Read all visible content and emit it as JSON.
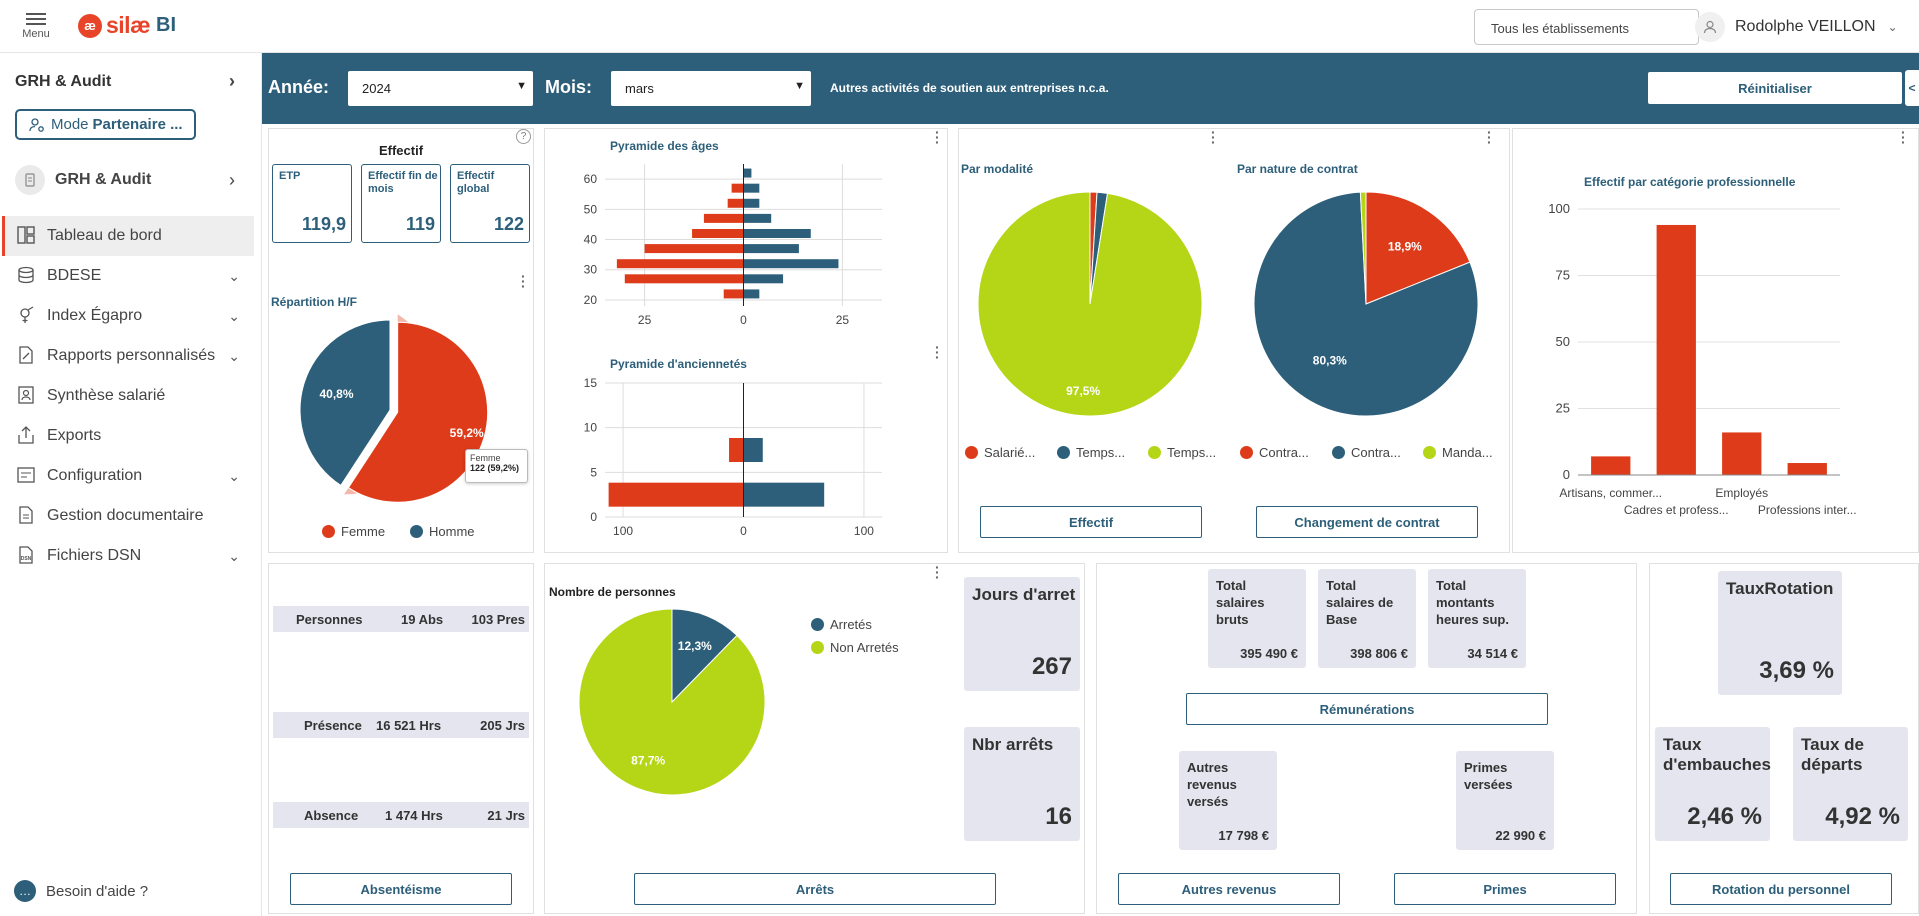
{
  "header": {
    "menu_label": "Menu",
    "logo_mark": "æ",
    "logo_text": "silæ",
    "logo_bi": "BI",
    "establishment_placeholder": "Tous les établissements",
    "user_name": "Rodolphe VEILLON"
  },
  "sidebar": {
    "section_title": "GRH & Audit",
    "mode_label": "Mode",
    "mode_value": "Partenaire ...",
    "workspace_label": "GRH & Audit",
    "items": [
      {
        "label": "Tableau de bord",
        "icon": "dashboard-icon"
      },
      {
        "label": "BDESE",
        "icon": "database-icon"
      },
      {
        "label": "Index Égapro",
        "icon": "gender-icon"
      },
      {
        "label": "Rapports personnalisés",
        "icon": "report-icon"
      },
      {
        "label": "Synthèse salarié",
        "icon": "person-doc-icon"
      },
      {
        "label": "Exports",
        "icon": "export-icon"
      },
      {
        "label": "Configuration",
        "icon": "config-icon"
      },
      {
        "label": "Gestion documentaire",
        "icon": "document-icon"
      },
      {
        "label": "Fichiers DSN",
        "icon": "dsn-file-icon"
      }
    ],
    "help_label": "Besoin d'aide ?"
  },
  "filters": {
    "year_label": "Année:",
    "year_value": "2024",
    "month_label": "Mois:",
    "month_value": "mars",
    "activity": "Autres activités de soutien aux entreprises n.c.a.",
    "reset_label": "Réinitialiser",
    "collapse_label": "<"
  },
  "effectif": {
    "title": "Effectif",
    "kpis": [
      {
        "label": "ETP",
        "value": "119,9"
      },
      {
        "label": "Effectif fin de mois",
        "value": "119"
      },
      {
        "label": "Effectif global",
        "value": "122"
      }
    ],
    "repartition_title": "Répartition H/F",
    "tooltip_label": "Femme",
    "tooltip_value": "122 (59,2%)"
  },
  "pyramide_ages": {
    "title": "Pyramide des âges"
  },
  "pyramide_anciennete": {
    "title": "Pyramide d'anciennetés"
  },
  "modalite": {
    "title": "Par modalité",
    "legend": [
      "Salarié...",
      "Temps...",
      "Temps..."
    ],
    "button": "Effectif"
  },
  "nature_contrat": {
    "title": "Par nature de contrat",
    "legend": [
      "Contra...",
      "Contra...",
      "Manda..."
    ],
    "button": "Changement de contrat"
  },
  "categorie": {
    "title": "Effectif par catégorie professionnelle"
  },
  "absences": {
    "rows": [
      {
        "label": "Personnes",
        "v1": "19 Abs",
        "v2": "103 Pres"
      },
      {
        "label": "Présence",
        "v1": "16 521 Hrs",
        "v2": "205 Jrs"
      },
      {
        "label": "Absence",
        "v1": "1 474 Hrs",
        "v2": "21 Jrs"
      }
    ],
    "button": "Absentéisme"
  },
  "arrets": {
    "title": "Nombre de personnes",
    "tiles": [
      {
        "label": "Jours d'arret",
        "value": "267"
      },
      {
        "label": "Nbr arrêts",
        "value": "16"
      }
    ],
    "button": "Arrêts"
  },
  "remunerations": {
    "tiles": [
      {
        "label": "Total salaires bruts",
        "value": "395 490 €"
      },
      {
        "label": "Total salaires de Base",
        "value": "398 806 €"
      },
      {
        "label": "Total montants heures sup.",
        "value": "34 514 €"
      }
    ],
    "button": "Rémunérations",
    "autres_tile": {
      "label": "Autres revenus versés",
      "value": "17 798 €"
    },
    "primes_tile": {
      "label": "Primes versées",
      "value": "22 990 €"
    },
    "autres_button": "Autres revenus",
    "primes_button": "Primes"
  },
  "rotation": {
    "tiles": [
      {
        "label": "TauxRotation",
        "value": "3,69 %"
      },
      {
        "label": "Taux d'embauches",
        "value": "2,46 %"
      },
      {
        "label": "Taux de départs",
        "value": "4,92 %"
      }
    ],
    "button": "Rotation du personnel"
  },
  "colors": {
    "primary": "#2d5f7a",
    "red": "#dd3b1a",
    "lime": "#b5d517",
    "tile": "#e5e5ef"
  },
  "chart_data": [
    {
      "type": "pie",
      "title": "Répartition H/F",
      "categories": [
        "Femme",
        "Homme"
      ],
      "values": [
        59.2,
        40.8
      ],
      "labels": [
        "59,2%",
        "40,8%"
      ],
      "colors": [
        "#dd3b1a",
        "#2d5f7a"
      ]
    },
    {
      "type": "bar",
      "orientation": "horizontal",
      "title": "Pyramide des âges",
      "y_ticks": [
        "20",
        "30",
        "40",
        "50",
        "60"
      ],
      "x_ticks": [
        "25",
        "0",
        "25"
      ],
      "xlim": [
        -35,
        35
      ],
      "ylim": [
        18,
        65
      ],
      "y": [
        22,
        27,
        32,
        37,
        42,
        47,
        52,
        57,
        62
      ],
      "series": [
        {
          "name": "Femme",
          "values": [
            5,
            30,
            32,
            25,
            13,
            10,
            4,
            3,
            0
          ]
        },
        {
          "name": "Homme",
          "values": [
            4,
            10,
            24,
            14,
            17,
            7,
            4,
            4,
            2
          ]
        }
      ]
    },
    {
      "type": "bar",
      "orientation": "horizontal",
      "title": "Pyramide d'anciennetés",
      "y_ticks": [
        "0",
        "5",
        "10",
        "15"
      ],
      "x_ticks": [
        "100",
        "0",
        "100"
      ],
      "xlim": [
        -115,
        115
      ],
      "ylim": [
        0,
        15
      ],
      "y": [
        2.5,
        7.5
      ],
      "series": [
        {
          "name": "Femme",
          "values": [
            112,
            12
          ]
        },
        {
          "name": "Homme",
          "values": [
            67,
            16
          ]
        }
      ]
    },
    {
      "type": "pie",
      "title": "Par modalité",
      "values": [
        1.0,
        1.5,
        97.5
      ],
      "labels": [
        "",
        "",
        "97,5%"
      ],
      "colors": [
        "#dd3b1a",
        "#2d5f7a",
        "#b5d517"
      ]
    },
    {
      "type": "pie",
      "title": "Par nature de contrat",
      "values": [
        18.9,
        80.3,
        0.8
      ],
      "labels": [
        "18,9%",
        "80,3%",
        ""
      ],
      "colors": [
        "#dd3b1a",
        "#2d5f7a",
        "#b5d517"
      ]
    },
    {
      "type": "bar",
      "title": "Effectif par catégorie professionnelle",
      "categories": [
        "Artisans, commer...",
        "Cadres et profess...",
        "Employés",
        "Professions inter..."
      ],
      "values": [
        7,
        94,
        16,
        4.5
      ],
      "ylim": [
        0,
        100
      ],
      "y_ticks": [
        "0",
        "25",
        "50",
        "75",
        "100"
      ]
    },
    {
      "type": "pie",
      "title": "Nombre de personnes",
      "categories": [
        "Arretés",
        "Non Arretés"
      ],
      "values": [
        12.3,
        87.7
      ],
      "labels": [
        "12,3%",
        "87,7%"
      ],
      "colors": [
        "#2d5f7a",
        "#b5d517"
      ]
    }
  ]
}
